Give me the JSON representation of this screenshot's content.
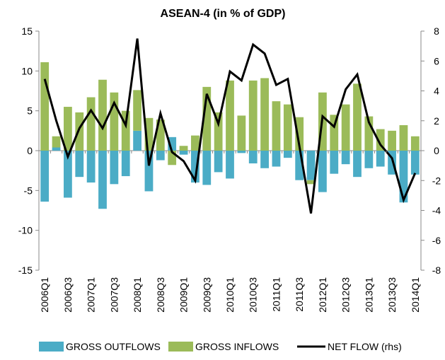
{
  "chart_data": {
    "type": "bar_line",
    "title": "ASEAN-4 (in % of GDP)",
    "categories": [
      "2006Q1",
      null,
      "2006Q3",
      null,
      "2007Q1",
      null,
      "2007Q3",
      null,
      "2008Q1",
      null,
      "2008Q3",
      null,
      "2009Q1",
      null,
      "2009Q3",
      null,
      "2010Q1",
      null,
      "2010Q3",
      null,
      "2011Q1",
      null,
      "2011Q3",
      null,
      "2012Q1",
      null,
      "2012Q3",
      null,
      "2013Q1",
      null,
      "2013Q3",
      null,
      "2014Q1"
    ],
    "series": [
      {
        "name": "GROSS OUTFLOWS",
        "color": "#4bacc6",
        "type": "bar",
        "values": [
          -6.4,
          0.4,
          -5.9,
          -3.3,
          -4.0,
          -7.3,
          -4.2,
          -3.2,
          2.5,
          -5.1,
          -1.2,
          1.7,
          -0.5,
          -4.0,
          -4.3,
          -2.7,
          -3.5,
          -0.3,
          -1.6,
          -2.2,
          -2.0,
          -0.9,
          -3.7,
          -3.7,
          -5.2,
          -2.9,
          -1.7,
          -3.3,
          -2.2,
          -2.0,
          -3.0,
          -6.5,
          -3.0
        ]
      },
      {
        "name": "GROSS INFLOWS",
        "color": "#9bbb59",
        "type": "bar",
        "values": [
          11.1,
          1.4,
          5.5,
          4.8,
          6.7,
          8.9,
          7.3,
          5.0,
          5.1,
          4.1,
          3.9,
          -1.8,
          0.6,
          1.9,
          8.0,
          4.8,
          8.8,
          4.4,
          8.8,
          9.1,
          6.2,
          5.8,
          4.2,
          -0.5,
          7.3,
          4.5,
          5.8,
          8.4,
          4.3,
          2.7,
          2.5,
          3.2,
          1.8
        ]
      },
      {
        "name": "NET FLOW (rhs)",
        "color": "#000000",
        "type": "line",
        "axis": "y2",
        "values": [
          4.8,
          2.0,
          -0.4,
          1.5,
          2.7,
          1.5,
          3.2,
          1.7,
          7.5,
          -1.0,
          2.5,
          -0.1,
          -0.7,
          -2.0,
          3.8,
          1.8,
          5.3,
          4.7,
          7.1,
          6.5,
          4.4,
          4.8,
          0.3,
          -4.2,
          2.3,
          1.6,
          4.1,
          5.1,
          1.9,
          0.4,
          -0.5,
          -3.3,
          -1.5
        ]
      }
    ],
    "ylim": [
      -15,
      15
    ],
    "yticks": [
      -15,
      -10,
      -5,
      0,
      5,
      10,
      15
    ],
    "y2lim": [
      -8,
      8
    ],
    "y2ticks": [
      -8,
      -6,
      -4,
      -2,
      0,
      2,
      4,
      6,
      8
    ]
  }
}
